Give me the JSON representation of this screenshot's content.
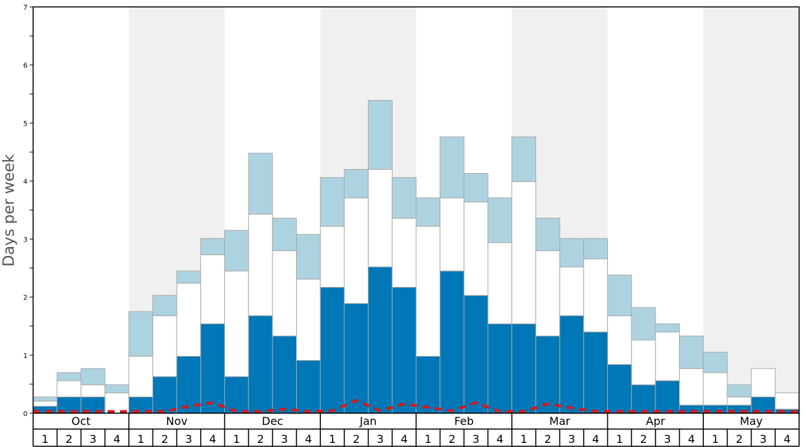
{
  "chart_data": {
    "type": "bar",
    "stacked": true,
    "title": "",
    "ylabel": "Days per week",
    "ylim": [
      0,
      7
    ],
    "yticks": [
      0,
      1,
      2,
      3,
      4,
      5,
      6,
      7
    ],
    "months": [
      "Oct",
      "Nov",
      "Dec",
      "Jan",
      "Feb",
      "Mar",
      "Apr",
      "May"
    ],
    "week_labels": [
      "1",
      "2",
      "3",
      "4"
    ],
    "categories": [
      "Oct 1",
      "Oct 2",
      "Oct 3",
      "Oct 4",
      "Nov 1",
      "Nov 2",
      "Nov 3",
      "Nov 4",
      "Dec 1",
      "Dec 2",
      "Dec 3",
      "Dec 4",
      "Jan 1",
      "Jan 2",
      "Jan 3",
      "Jan 4",
      "Feb 1",
      "Feb 2",
      "Feb 3",
      "Feb 4",
      "Mar 1",
      "Mar 2",
      "Mar 3",
      "Mar 4",
      "Apr 1",
      "Apr 2",
      "Apr 3",
      "Apr 4",
      "May 1",
      "May 2",
      "May 3",
      "May 4"
    ],
    "series": [
      {
        "color": "#0077b6",
        "values": [
          0.12,
          0.28,
          0.28,
          0.0,
          0.28,
          0.63,
          0.98,
          1.54,
          0.63,
          1.68,
          1.33,
          0.91,
          2.17,
          1.89,
          2.52,
          2.17,
          0.98,
          2.45,
          2.03,
          1.54,
          1.54,
          1.33,
          1.68,
          1.4,
          0.84,
          0.49,
          0.56,
          0.14,
          0.14,
          0.14,
          0.28,
          0.07
        ]
      },
      {
        "color": "#ffffff",
        "values": [
          0.09,
          0.28,
          0.21,
          0.35,
          0.7,
          1.05,
          1.26,
          1.19,
          1.82,
          1.75,
          1.47,
          1.4,
          1.05,
          1.82,
          1.68,
          1.19,
          2.24,
          1.26,
          1.61,
          1.4,
          2.45,
          1.47,
          0.84,
          1.26,
          0.84,
          0.77,
          0.84,
          0.63,
          0.56,
          0.14,
          0.49,
          0.28
        ]
      },
      {
        "color": "#aed3e0",
        "values": [
          0.07,
          0.14,
          0.28,
          0.14,
          0.77,
          0.35,
          0.21,
          0.28,
          0.7,
          1.05,
          0.56,
          0.77,
          0.84,
          0.49,
          1.19,
          0.7,
          0.49,
          1.05,
          0.49,
          0.77,
          0.77,
          0.56,
          0.49,
          0.35,
          0.7,
          0.56,
          0.14,
          0.56,
          0.35,
          0.21,
          0.0,
          0.0
        ]
      }
    ],
    "dashed_line": {
      "color": "#d7191c",
      "values": [
        0.03,
        0.03,
        0.03,
        0.03,
        0.03,
        0.03,
        0.12,
        0.18,
        0.03,
        0.03,
        0.07,
        0.03,
        0.04,
        0.22,
        0.04,
        0.16,
        0.1,
        0.04,
        0.18,
        0.03,
        0.03,
        0.16,
        0.09,
        0.03,
        0.03,
        0.03,
        0.03,
        0.03,
        0.03,
        0.03,
        0.03,
        0.03
      ]
    },
    "grid": false,
    "alternating_month_shading": "#f0f0f0",
    "legend": "none"
  }
}
